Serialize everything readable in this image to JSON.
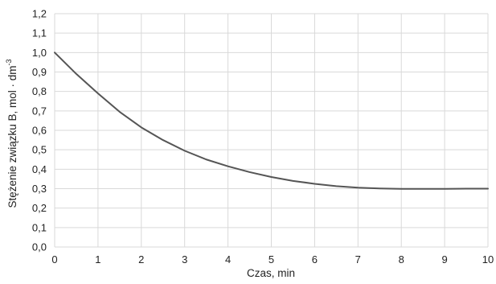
{
  "chart_data": {
    "type": "line",
    "xlabel": "Czas, min",
    "ylabel": "Stężenie związku B, mol · dm",
    "ylabel_superscript": "-3",
    "xlim": [
      0,
      10
    ],
    "ylim": [
      0,
      1.2
    ],
    "x_ticks": [
      "0",
      "1",
      "2",
      "3",
      "4",
      "5",
      "6",
      "7",
      "8",
      "9",
      "10"
    ],
    "y_ticks": [
      "0,0",
      "0,1",
      "0,2",
      "0,3",
      "0,4",
      "0,5",
      "0,6",
      "0,7",
      "0,8",
      "0,9",
      "1,0",
      "1,1",
      "1,2"
    ],
    "grid": true,
    "series": [
      {
        "x": [
          0,
          0.5,
          1,
          1.5,
          2,
          2.5,
          3,
          3.5,
          4,
          4.5,
          5,
          5.5,
          6,
          6.5,
          7,
          7.5,
          8,
          8.5,
          9,
          9.5,
          10
        ],
        "y": [
          1.0,
          0.89,
          0.79,
          0.695,
          0.615,
          0.55,
          0.495,
          0.45,
          0.415,
          0.385,
          0.36,
          0.34,
          0.325,
          0.313,
          0.305,
          0.301,
          0.299,
          0.299,
          0.299,
          0.3,
          0.3
        ],
        "color": "#555555"
      }
    ]
  }
}
